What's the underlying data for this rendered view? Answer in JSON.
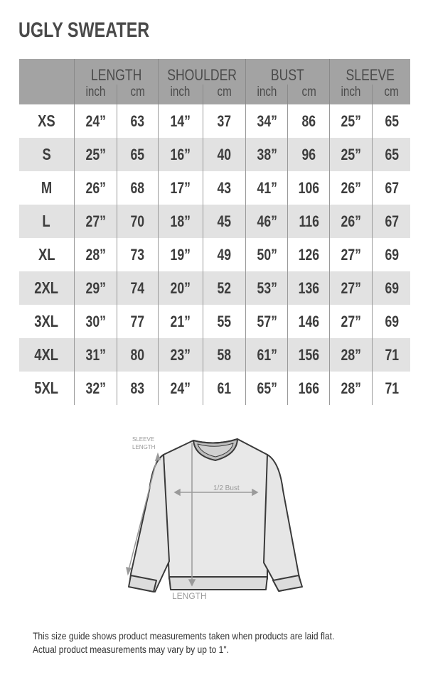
{
  "title": "UGLY SWEATER",
  "table": {
    "groups": [
      "LENGTH",
      "SHOULDER",
      "BUST",
      "SLEEVE"
    ],
    "units": [
      "inch",
      "cm",
      "inch",
      "cm",
      "inch",
      "cm",
      "inch",
      "cm"
    ],
    "rows": [
      {
        "size": "XS",
        "values": [
          "24”",
          "63",
          "14”",
          "37",
          "34”",
          "86",
          "25”",
          "65"
        ]
      },
      {
        "size": "S",
        "values": [
          "25”",
          "65",
          "16”",
          "40",
          "38”",
          "96",
          "25”",
          "65"
        ]
      },
      {
        "size": "M",
        "values": [
          "26”",
          "68",
          "17”",
          "43",
          "41”",
          "106",
          "26”",
          "67"
        ]
      },
      {
        "size": "L",
        "values": [
          "27”",
          "70",
          "18”",
          "45",
          "46”",
          "116",
          "26”",
          "67"
        ]
      },
      {
        "size": "XL",
        "values": [
          "28”",
          "73",
          "19”",
          "49",
          "50”",
          "126",
          "27”",
          "69"
        ]
      },
      {
        "size": "2XL",
        "values": [
          "29”",
          "74",
          "20”",
          "52",
          "53”",
          "136",
          "27”",
          "69"
        ]
      },
      {
        "size": "3XL",
        "values": [
          "30”",
          "77",
          "21”",
          "55",
          "57”",
          "146",
          "27”",
          "69"
        ]
      },
      {
        "size": "4XL",
        "values": [
          "31”",
          "80",
          "23”",
          "58",
          "61”",
          "156",
          "28”",
          "71"
        ]
      },
      {
        "size": "5XL",
        "values": [
          "32”",
          "83",
          "24”",
          "61",
          "65”",
          "166",
          "28”",
          "71"
        ]
      }
    ]
  },
  "diagram": {
    "sleeve_label_1": "SLEEVE",
    "sleeve_label_2": "LENGTH",
    "bust_label": "1/2 Bust",
    "length_label": "LENGTH"
  },
  "note": {
    "line1": "This size guide shows product measurements taken when products are laid flat.",
    "line2": "Actual product measurements may vary by up to 1\"."
  }
}
